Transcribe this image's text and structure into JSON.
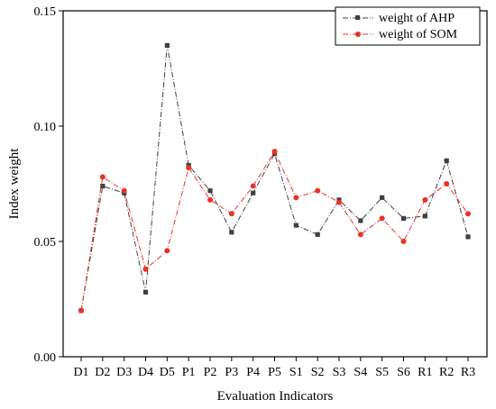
{
  "chart_data": {
    "type": "line",
    "title": "",
    "xlabel": "Evaluation Indicators",
    "ylabel": "Index weight",
    "categories": [
      "D1",
      "D2",
      "D3",
      "D4",
      "D5",
      "P1",
      "P2",
      "P3",
      "P4",
      "P5",
      "S1",
      "S2",
      "S3",
      "S4",
      "S5",
      "S6",
      "R1",
      "R2",
      "R3"
    ],
    "ylim": [
      0.0,
      0.15
    ],
    "yticks": [
      "0.00",
      "0.05",
      "0.10",
      "0.15"
    ],
    "grid": false,
    "legend_position": "top-right",
    "series": [
      {
        "name": "weight of AHP",
        "color": "#404040",
        "marker": "square",
        "line_style": "dash-dot",
        "values": [
          0.02,
          0.074,
          0.071,
          0.028,
          0.135,
          0.083,
          0.072,
          0.054,
          0.071,
          0.088,
          0.057,
          0.053,
          0.068,
          0.059,
          0.069,
          0.06,
          0.061,
          0.085,
          0.052
        ]
      },
      {
        "name": "weight of SOM",
        "color": "#e8332a",
        "marker": "circle",
        "line_style": "dash-dot",
        "values": [
          0.02,
          0.078,
          0.072,
          0.038,
          0.046,
          0.082,
          0.068,
          0.062,
          0.074,
          0.089,
          0.069,
          0.072,
          0.067,
          0.053,
          0.06,
          0.05,
          0.068,
          0.075,
          0.062
        ]
      }
    ]
  }
}
